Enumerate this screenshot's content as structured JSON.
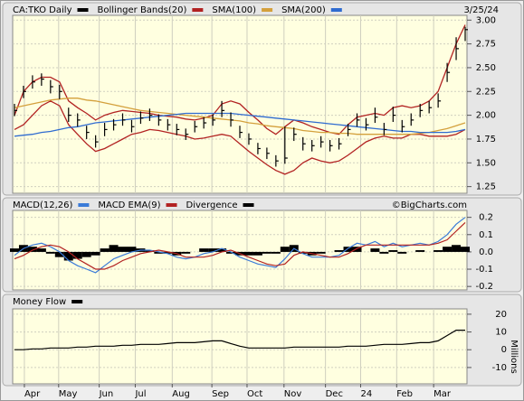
{
  "chart_data": [
    {
      "type": "ohlc",
      "title": "CA:TKO Daily",
      "date": "3/25/24",
      "x": [
        0,
        1,
        2,
        3,
        4,
        5,
        6,
        7,
        8,
        9,
        10,
        11,
        12,
        13,
        14,
        15,
        16,
        17,
        18,
        19,
        20,
        21,
        22,
        23,
        24,
        25,
        26,
        27,
        28,
        29,
        30,
        31,
        32,
        33,
        34,
        35,
        36,
        37,
        38,
        39,
        40,
        41,
        42,
        43,
        44,
        45,
        46,
        47,
        48,
        49,
        50
      ],
      "xlim": [
        -0.2,
        50.2
      ],
      "ylim": [
        1.18,
        3.05
      ],
      "yticks": [
        {
          "value": 3,
          "label": "3.00"
        },
        {
          "value": 2.75,
          "label": "2.75"
        },
        {
          "value": 2.5,
          "label": "2.50"
        },
        {
          "value": 2.25,
          "label": "2.25"
        },
        {
          "value": 2,
          "label": "2.00"
        },
        {
          "value": 1.75,
          "label": "1.75"
        },
        {
          "value": 1.5,
          "label": "1.50"
        },
        {
          "value": 1.25,
          "label": "1.25"
        }
      ],
      "grid": true,
      "series": [
        {
          "name": "CA:TKO Daily",
          "color": "#000000",
          "high": [
            2.12,
            2.31,
            2.42,
            2.44,
            2.37,
            2.32,
            2.08,
            2.02,
            1.89,
            1.79,
            1.92,
            1.96,
            2.02,
            1.95,
            2.04,
            2.07,
            2.01,
            1.96,
            1.91,
            1.86,
            1.94,
            1.98,
            2.01,
            2.15,
            2.03,
            1.89,
            1.81,
            1.71,
            1.66,
            1.58,
            1.88,
            1.87,
            1.77,
            1.74,
            1.78,
            1.74,
            1.76,
            1.91,
            2.02,
            1.97,
            2.08,
            1.92,
            2.09,
            1.95,
            2.02,
            2.12,
            2.15,
            2.23,
            2.55,
            2.82,
            2.93
          ],
          "low": [
            1.99,
            2.18,
            2.28,
            2.31,
            2.23,
            2.17,
            1.93,
            1.88,
            1.75,
            1.66,
            1.78,
            1.84,
            1.89,
            1.82,
            1.91,
            1.94,
            1.89,
            1.84,
            1.79,
            1.74,
            1.82,
            1.86,
            1.89,
            1.98,
            1.88,
            1.76,
            1.69,
            1.59,
            1.54,
            1.46,
            1.49,
            1.73,
            1.63,
            1.62,
            1.66,
            1.62,
            1.64,
            1.78,
            1.88,
            1.84,
            1.92,
            1.79,
            1.93,
            1.82,
            1.89,
            1.98,
            2.02,
            2.08,
            2.35,
            2.58,
            2.78
          ],
          "close": [
            2.05,
            2.25,
            2.35,
            2.38,
            2.3,
            2.25,
            2.0,
            1.95,
            1.82,
            1.72,
            1.85,
            1.9,
            1.95,
            1.88,
            1.97,
            2.0,
            1.95,
            1.9,
            1.85,
            1.8,
            1.88,
            1.92,
            1.95,
            2.05,
            1.95,
            1.82,
            1.75,
            1.65,
            1.6,
            1.52,
            1.55,
            1.8,
            1.7,
            1.68,
            1.72,
            1.68,
            1.7,
            1.85,
            1.95,
            1.9,
            1.98,
            1.85,
            2.0,
            1.88,
            1.95,
            2.05,
            2.08,
            2.15,
            2.45,
            2.7,
            2.9
          ]
        },
        {
          "name": "Bollinger Bands(20)",
          "color": "#b22222",
          "upper": [
            2.0,
            2.25,
            2.35,
            2.4,
            2.4,
            2.35,
            2.15,
            2.08,
            2.02,
            1.95,
            2.0,
            2.03,
            2.05,
            2.04,
            2.03,
            2.02,
            2.0,
            1.99,
            1.98,
            1.96,
            1.95,
            1.97,
            2.0,
            2.12,
            2.15,
            2.12,
            2.03,
            1.95,
            1.86,
            1.8,
            1.88,
            1.95,
            1.92,
            1.88,
            1.85,
            1.82,
            1.8,
            1.9,
            1.98,
            2.0,
            2.02,
            2.0,
            2.08,
            2.1,
            2.08,
            2.1,
            2.15,
            2.25,
            2.5,
            2.75,
            2.95
          ],
          "lower": [
            1.85,
            1.9,
            2.0,
            2.1,
            2.15,
            2.1,
            1.9,
            1.8,
            1.7,
            1.62,
            1.65,
            1.7,
            1.75,
            1.8,
            1.82,
            1.85,
            1.84,
            1.82,
            1.8,
            1.78,
            1.75,
            1.76,
            1.78,
            1.8,
            1.78,
            1.7,
            1.62,
            1.55,
            1.48,
            1.42,
            1.38,
            1.42,
            1.5,
            1.55,
            1.52,
            1.5,
            1.52,
            1.58,
            1.65,
            1.72,
            1.76,
            1.78,
            1.76,
            1.76,
            1.8,
            1.8,
            1.78,
            1.78,
            1.78,
            1.8,
            1.85
          ]
        },
        {
          "name": "SMA(100)",
          "color": "#d4a03c",
          "values": [
            2.08,
            2.1,
            2.12,
            2.14,
            2.16,
            2.17,
            2.18,
            2.18,
            2.16,
            2.15,
            2.13,
            2.11,
            2.09,
            2.07,
            2.05,
            2.04,
            2.03,
            2.02,
            2.01,
            2.0,
            1.99,
            1.98,
            1.97,
            1.96,
            1.95,
            1.94,
            1.92,
            1.91,
            1.89,
            1.88,
            1.87,
            1.86,
            1.84,
            1.83,
            1.82,
            1.82,
            1.81,
            1.81,
            1.8,
            1.8,
            1.8,
            1.8,
            1.8,
            1.8,
            1.8,
            1.81,
            1.82,
            1.84,
            1.86,
            1.89,
            1.92
          ]
        },
        {
          "name": "SMA(200)",
          "color": "#2f6bd0",
          "values": [
            1.78,
            1.79,
            1.8,
            1.82,
            1.83,
            1.85,
            1.87,
            1.88,
            1.9,
            1.92,
            1.93,
            1.94,
            1.95,
            1.96,
            1.97,
            1.98,
            1.99,
            2.0,
            2.01,
            2.02,
            2.02,
            2.02,
            2.02,
            2.02,
            2.02,
            2.01,
            2.0,
            1.99,
            1.98,
            1.97,
            1.96,
            1.95,
            1.94,
            1.93,
            1.92,
            1.91,
            1.9,
            1.89,
            1.88,
            1.87,
            1.86,
            1.85,
            1.84,
            1.83,
            1.83,
            1.82,
            1.82,
            1.82,
            1.82,
            1.83,
            1.85
          ]
        }
      ]
    },
    {
      "type": "macd",
      "credit": "©BigCharts.com",
      "x": [
        0,
        1,
        2,
        3,
        4,
        5,
        6,
        7,
        8,
        9,
        10,
        11,
        12,
        13,
        14,
        15,
        16,
        17,
        18,
        19,
        20,
        21,
        22,
        23,
        24,
        25,
        26,
        27,
        28,
        29,
        30,
        31,
        32,
        33,
        34,
        35,
        36,
        37,
        38,
        39,
        40,
        41,
        42,
        43,
        44,
        45,
        46,
        47,
        48,
        49,
        50
      ],
      "xlim": [
        -0.2,
        50.2
      ],
      "ylim": [
        -0.22,
        0.24
      ],
      "yticks": [
        0.2,
        0.1,
        {
          "value": 0,
          "label": "0.0"
        },
        -0.1,
        -0.2
      ],
      "grid": true,
      "series": [
        {
          "name": "MACD(12,26)",
          "color": "#3a7ad8",
          "style": "line",
          "values": [
            -0.02,
            0.02,
            0.04,
            0.05,
            0.03,
            0.0,
            -0.05,
            -0.08,
            -0.1,
            -0.12,
            -0.08,
            -0.04,
            -0.02,
            0.0,
            0.01,
            0.01,
            0.0,
            -0.01,
            -0.03,
            -0.04,
            -0.03,
            -0.01,
            0.0,
            0.02,
            0.0,
            -0.03,
            -0.05,
            -0.07,
            -0.08,
            -0.09,
            -0.04,
            0.02,
            -0.01,
            -0.03,
            -0.03,
            -0.03,
            -0.02,
            0.02,
            0.05,
            0.04,
            0.06,
            0.03,
            0.05,
            0.03,
            0.04,
            0.05,
            0.04,
            0.06,
            0.1,
            0.16,
            0.2
          ]
        },
        {
          "name": "MACD EMA(9)",
          "color": "#b22222",
          "style": "line",
          "values": [
            -0.04,
            -0.02,
            0.01,
            0.03,
            0.04,
            0.03,
            0.0,
            -0.04,
            -0.07,
            -0.1,
            -0.1,
            -0.08,
            -0.05,
            -0.03,
            -0.01,
            0.0,
            0.01,
            0.0,
            -0.01,
            -0.03,
            -0.03,
            -0.03,
            -0.02,
            0.0,
            0.01,
            -0.01,
            -0.03,
            -0.05,
            -0.07,
            -0.08,
            -0.07,
            -0.02,
            0.0,
            -0.01,
            -0.02,
            -0.03,
            -0.03,
            -0.01,
            0.02,
            0.04,
            0.04,
            0.04,
            0.04,
            0.04,
            0.04,
            0.04,
            0.04,
            0.05,
            0.07,
            0.12,
            0.17
          ]
        },
        {
          "name": "Divergence",
          "color": "#000000",
          "style": "bar",
          "values": [
            0.02,
            0.04,
            0.03,
            0.02,
            -0.01,
            -0.03,
            -0.05,
            -0.04,
            -0.03,
            -0.02,
            0.02,
            0.04,
            0.03,
            0.03,
            0.02,
            0.01,
            -0.01,
            -0.01,
            -0.02,
            -0.01,
            0.0,
            0.02,
            0.02,
            0.02,
            -0.01,
            -0.02,
            -0.02,
            -0.02,
            -0.01,
            -0.01,
            0.03,
            0.04,
            -0.01,
            -0.02,
            -0.01,
            0.0,
            0.01,
            0.03,
            0.03,
            0.0,
            0.02,
            -0.01,
            0.01,
            -0.01,
            0.0,
            0.01,
            0.0,
            0.01,
            0.03,
            0.04,
            0.03
          ]
        }
      ]
    },
    {
      "type": "line",
      "y_label": "Millions",
      "x": [
        0,
        1,
        2,
        3,
        4,
        5,
        6,
        7,
        8,
        9,
        10,
        11,
        12,
        13,
        14,
        15,
        16,
        17,
        18,
        19,
        20,
        21,
        22,
        23,
        24,
        25,
        26,
        27,
        28,
        29,
        30,
        31,
        32,
        33,
        34,
        35,
        36,
        37,
        38,
        39,
        40,
        41,
        42,
        43,
        44,
        45,
        46,
        47,
        48,
        49,
        50
      ],
      "xlim": [
        -0.2,
        50.2
      ],
      "ylim": [
        -19.2,
        23
      ],
      "xticks": [
        {
          "value": 1.1,
          "label": "Apr"
        },
        {
          "value": 4.9,
          "label": "May"
        },
        {
          "value": 9.4,
          "label": "Jun"
        },
        {
          "value": 13.4,
          "label": "Jul"
        },
        {
          "value": 17.5,
          "label": "Aug"
        },
        {
          "value": 21.9,
          "label": "Sep"
        },
        {
          "value": 25.8,
          "label": "Oct"
        },
        {
          "value": 29.9,
          "label": "Nov"
        },
        {
          "value": 34.5,
          "label": "Dec"
        },
        {
          "value": 38.4,
          "label": "24"
        },
        {
          "value": 42.4,
          "label": "Feb"
        },
        {
          "value": 46.5,
          "label": "Mar"
        }
      ],
      "yticks": [
        20,
        10,
        0,
        -10
      ],
      "grid": true,
      "series": [
        {
          "name": "Money Flow",
          "color": "#000000",
          "values": [
            0,
            0,
            0.5,
            0.5,
            1,
            1,
            1,
            1.5,
            1.5,
            2,
            2,
            2,
            2.5,
            2.5,
            3,
            3,
            3,
            3.5,
            4,
            4,
            4,
            4.5,
            5,
            5,
            3.5,
            2,
            1,
            1,
            1,
            1,
            1,
            1.5,
            1.5,
            1.5,
            1.5,
            1.5,
            1.5,
            2,
            2,
            2,
            2.5,
            3,
            3,
            3,
            3.5,
            4,
            4,
            5,
            8,
            11,
            11
          ]
        }
      ]
    }
  ]
}
